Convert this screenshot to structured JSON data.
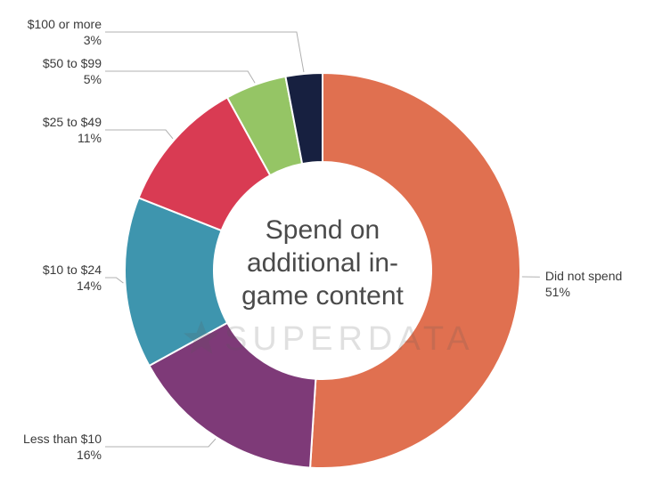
{
  "chart_data": {
    "type": "pie",
    "donut": true,
    "title": "Spend on additional in-game content",
    "slices": [
      {
        "label": "Did not spend",
        "value": 51,
        "display": "51%",
        "color": "#E07050"
      },
      {
        "label": "Less than $10",
        "value": 16,
        "display": "16%",
        "color": "#7E3A78"
      },
      {
        "label": "$10 to $24",
        "value": 14,
        "display": "14%",
        "color": "#3E95AE"
      },
      {
        "label": "$25 to $49",
        "value": 11,
        "display": "11%",
        "color": "#D93B53"
      },
      {
        "label": "$50 to $99",
        "value": 5,
        "display": "5%",
        "color": "#95C565"
      },
      {
        "label": "$100 or more",
        "value": 3,
        "display": "3%",
        "color": "#172040"
      }
    ]
  },
  "watermark": {
    "text": "SUPERDATA",
    "icon": "star-icon"
  }
}
